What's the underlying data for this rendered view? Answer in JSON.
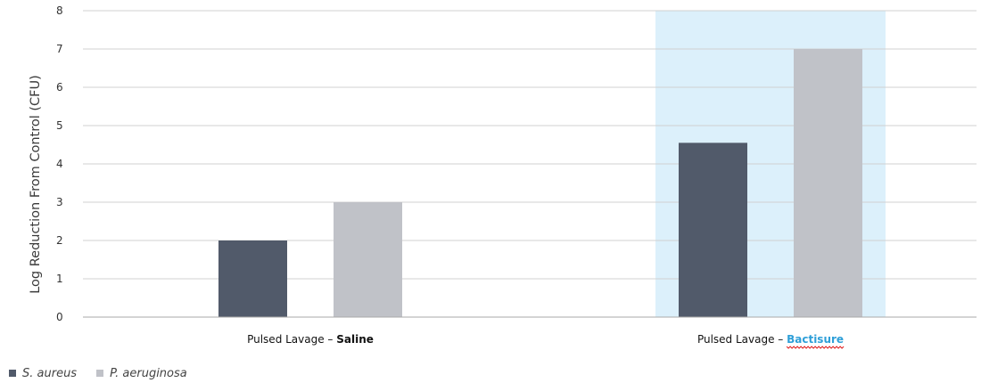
{
  "colors": {
    "s_aureus": "#515a6a",
    "p_aeruginosa": "#c0c2c8",
    "highlight": "#dcf0fb",
    "grid": "#d0d0d0",
    "axis": "#aaaaaa",
    "link_blue": "#2e9fd8"
  },
  "chart_data": {
    "type": "bar",
    "categories": [
      "Pulsed Lavage – Saline",
      "Pulsed Lavage – Bactisure"
    ],
    "category_parts": [
      {
        "prefix": "Pulsed Lavage – ",
        "emphasis": "Saline",
        "style": "bold"
      },
      {
        "prefix": "Pulsed Lavage – ",
        "emphasis": "Bactisure",
        "style": "bold-blue-underlined"
      }
    ],
    "series": [
      {
        "name": "S. aureus",
        "values": [
          2,
          4.55
        ],
        "color": "#515a6a"
      },
      {
        "name": "P. aeruginosa",
        "values": [
          3,
          7
        ],
        "color": "#c0c2c8"
      }
    ],
    "highlighted_category": "Pulsed Lavage – Bactisure",
    "ylabel": "Log Reduction From Control (CFU)",
    "ylim": [
      0,
      8
    ],
    "yticks": [
      0,
      1,
      2,
      3,
      4,
      5,
      6,
      7,
      8
    ],
    "grid": true,
    "legend_position": "bottom-left"
  }
}
